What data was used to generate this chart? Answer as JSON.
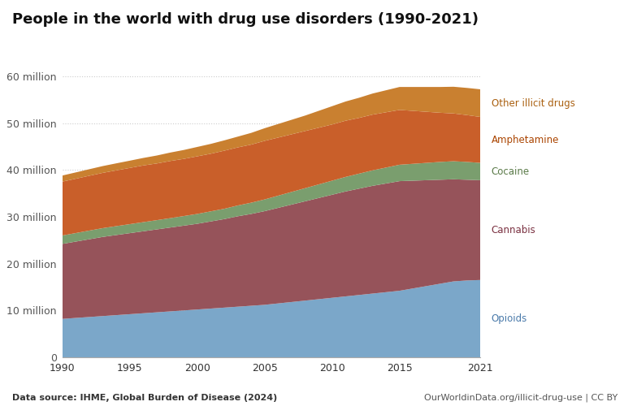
{
  "title": "People in the world with drug use disorders (1990-2021)",
  "years": [
    1990,
    1991,
    1992,
    1993,
    1994,
    1995,
    1996,
    1997,
    1998,
    1999,
    2000,
    2001,
    2002,
    2003,
    2004,
    2005,
    2006,
    2007,
    2008,
    2009,
    2010,
    2011,
    2012,
    2013,
    2014,
    2015,
    2016,
    2017,
    2018,
    2019,
    2020,
    2021
  ],
  "opioids": [
    8.2,
    8.4,
    8.6,
    8.8,
    9.0,
    9.2,
    9.4,
    9.6,
    9.8,
    10.0,
    10.2,
    10.4,
    10.6,
    10.8,
    11.0,
    11.2,
    11.5,
    11.8,
    12.1,
    12.4,
    12.7,
    13.0,
    13.3,
    13.6,
    13.9,
    14.2,
    14.7,
    15.2,
    15.7,
    16.2,
    16.4,
    16.5
  ],
  "cannabis": [
    16.0,
    16.3,
    16.6,
    16.9,
    17.1,
    17.3,
    17.5,
    17.7,
    17.9,
    18.1,
    18.3,
    18.6,
    18.9,
    19.3,
    19.6,
    20.0,
    20.4,
    20.8,
    21.2,
    21.6,
    22.0,
    22.4,
    22.7,
    23.0,
    23.2,
    23.4,
    23.0,
    22.6,
    22.2,
    21.8,
    21.5,
    21.3
  ],
  "cocaine": [
    1.8,
    1.82,
    1.85,
    1.87,
    1.9,
    1.92,
    1.95,
    1.97,
    2.0,
    2.05,
    2.1,
    2.15,
    2.2,
    2.3,
    2.4,
    2.5,
    2.6,
    2.7,
    2.8,
    2.9,
    3.0,
    3.1,
    3.2,
    3.3,
    3.4,
    3.5,
    3.6,
    3.7,
    3.8,
    3.85,
    3.8,
    3.7
  ],
  "amphetamine": [
    11.5,
    11.6,
    11.7,
    11.8,
    11.9,
    12.0,
    12.1,
    12.1,
    12.2,
    12.2,
    12.3,
    12.3,
    12.4,
    12.4,
    12.4,
    12.5,
    12.4,
    12.3,
    12.2,
    12.1,
    12.0,
    12.0,
    11.9,
    11.9,
    11.8,
    11.7,
    11.3,
    10.9,
    10.5,
    10.2,
    10.0,
    9.8
  ],
  "other_illicit": [
    1.3,
    1.35,
    1.4,
    1.45,
    1.5,
    1.55,
    1.6,
    1.7,
    1.8,
    1.9,
    2.0,
    2.1,
    2.2,
    2.3,
    2.5,
    2.7,
    2.9,
    3.1,
    3.3,
    3.6,
    3.9,
    4.1,
    4.3,
    4.5,
    4.7,
    4.9,
    5.1,
    5.3,
    5.5,
    5.7,
    5.8,
    5.9
  ],
  "colors": {
    "opioids": "#7ba7c9",
    "cannabis": "#96535a",
    "cocaine": "#7a9e6e",
    "amphetamine": "#c95f2a",
    "other_illicit": "#c98030"
  },
  "label_colors": {
    "opioids": "#4a7aaa",
    "cannabis": "#7a3040",
    "cocaine": "#5a7a48",
    "amphetamine": "#aa4400",
    "other_illicit": "#aa6010"
  },
  "labels": {
    "opioids": "Opioids",
    "cannabis": "Cannabis",
    "cocaine": "Cocaine",
    "amphetamine": "Amphetamine",
    "other_illicit": "Other illicit drugs"
  },
  "ylim": [
    0,
    65
  ],
  "yticks": [
    0,
    10,
    20,
    30,
    40,
    50,
    60
  ],
  "ytick_labels": [
    "0",
    "10 million",
    "20 million",
    "30 million",
    "40 million",
    "50 million",
    "60 million"
  ],
  "xticks": [
    1990,
    1995,
    2000,
    2005,
    2010,
    2015,
    2021
  ],
  "footer_left": "Data source: IHME, Global Burden of Disease (2024)",
  "footer_right": "OurWorldinData.org/illicit-drug-use | CC BY",
  "background_color": "#ffffff",
  "grid_color": "#cccccc"
}
